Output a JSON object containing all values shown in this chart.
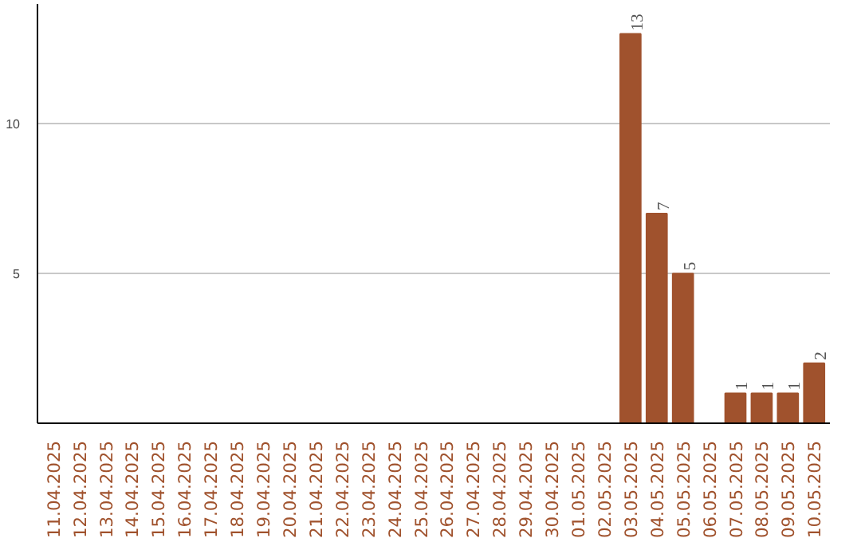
{
  "chart_data": {
    "type": "bar",
    "categories": [
      "11.04.2025",
      "12.04.2025",
      "13.04.2025",
      "14.04.2025",
      "15.04.2025",
      "16.04.2025",
      "17.04.2025",
      "18.04.2025",
      "19.04.2025",
      "20.04.2025",
      "21.04.2025",
      "22.04.2025",
      "23.04.2025",
      "24.04.2025",
      "25.04.2025",
      "26.04.2025",
      "27.04.2025",
      "28.04.2025",
      "29.04.2025",
      "30.04.2025",
      "01.05.2025",
      "02.05.2025",
      "03.05.2025",
      "04.05.2025",
      "05.05.2025",
      "06.05.2025",
      "07.05.2025",
      "08.05.2025",
      "09.05.2025",
      "10.05.2025"
    ],
    "values": [
      0,
      0,
      0,
      0,
      0,
      0,
      0,
      0,
      0,
      0,
      0,
      0,
      0,
      0,
      0,
      0,
      0,
      0,
      0,
      0,
      0,
      0,
      13,
      7,
      5,
      0,
      1,
      1,
      1,
      2
    ],
    "value_labels": [
      null,
      null,
      null,
      null,
      null,
      null,
      null,
      null,
      null,
      null,
      null,
      null,
      null,
      null,
      null,
      null,
      null,
      null,
      null,
      null,
      null,
      null,
      "13",
      "7",
      "5",
      null,
      "1",
      "1",
      "1",
      "2"
    ],
    "color": "#a0522d",
    "ylim": [
      0,
      14
    ],
    "yticks": [
      5,
      10
    ],
    "grid": "y"
  }
}
